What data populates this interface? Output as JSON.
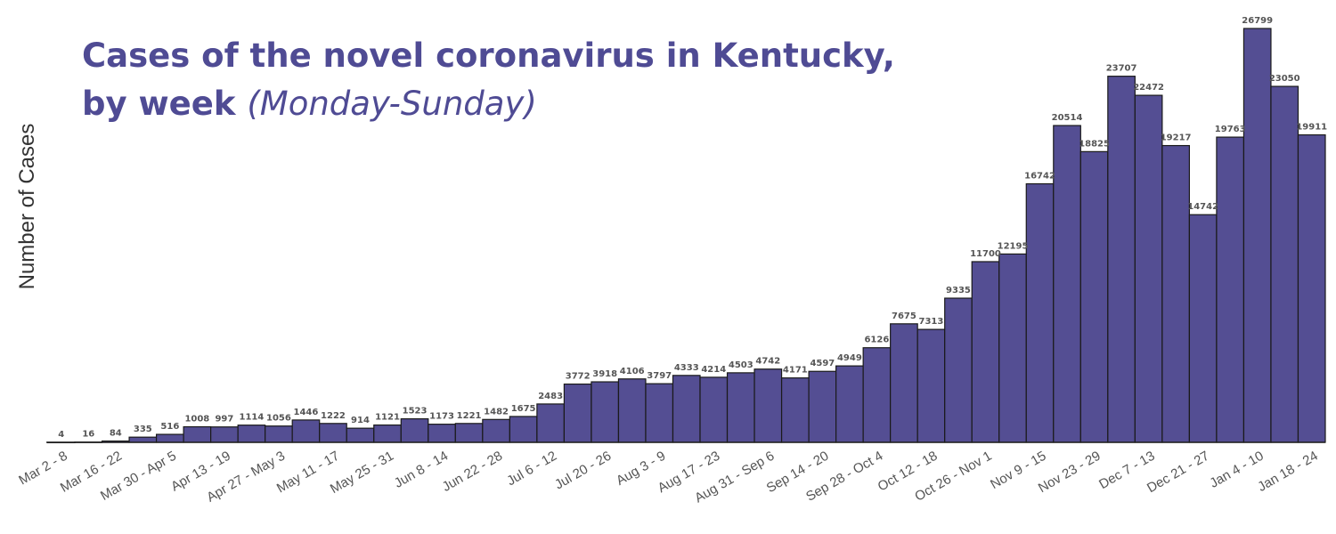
{
  "title": {
    "main": "Cases of the novel coronavirus in Kentucky,",
    "line2_bold": "by week",
    "line2_italic": "(Monday-Sunday)"
  },
  "colors": {
    "bar": "#544e93",
    "title": "#4f4b94"
  },
  "chart_data": {
    "type": "bar",
    "ylabel": "Number of Cases",
    "xlabel": "",
    "ylim": [
      0,
      27500
    ],
    "grid": false,
    "legend": "none",
    "values": [
      4,
      16,
      84,
      335,
      516,
      1008,
      997,
      1114,
      1056,
      1446,
      1222,
      914,
      1121,
      1523,
      1173,
      1221,
      1482,
      1675,
      2483,
      3772,
      3918,
      4106,
      3797,
      4333,
      4214,
      4503,
      4742,
      4171,
      4597,
      4949,
      6126,
      7675,
      7313,
      9335,
      11700,
      12195,
      16742,
      20514,
      18825,
      23707,
      22472,
      19217,
      14742,
      19763,
      26799,
      23050,
      19911
    ],
    "value_labels": [
      "4",
      "16",
      "84",
      "335",
      "516",
      "1008",
      "997",
      "1114",
      "1056",
      "1446",
      "1222",
      "914",
      "1121",
      "1523",
      "1173",
      "1221",
      "1482",
      "1675",
      "2483",
      "3772",
      "3918",
      "4106",
      "3797",
      "4333",
      "4214",
      "4503",
      "4742",
      "4171",
      "4597",
      "4949",
      "6126",
      "7675",
      "7313",
      "9335",
      "11700",
      "12195",
      "16742",
      "20514",
      "18825",
      "23707",
      "22472",
      "19217",
      "14742",
      "19763",
      "26799",
      "23050",
      "19911"
    ],
    "tick_labels": [
      {
        "index": 0,
        "text": "Mar 2 - 8"
      },
      {
        "index": 2,
        "text": "Mar 16 - 22"
      },
      {
        "index": 4,
        "text": "Mar 30 - Apr 5"
      },
      {
        "index": 6,
        "text": "Apr 13 - 19"
      },
      {
        "index": 8,
        "text": "Apr 27 - May 3"
      },
      {
        "index": 10,
        "text": "May 11 - 17"
      },
      {
        "index": 12,
        "text": "May 25 - 31"
      },
      {
        "index": 14,
        "text": "Jun 8 - 14"
      },
      {
        "index": 16,
        "text": "Jun 22 - 28"
      },
      {
        "index": 18,
        "text": "Jul 6 - 12"
      },
      {
        "index": 20,
        "text": "Jul 20 - 26"
      },
      {
        "index": 22,
        "text": "Aug 3 - 9"
      },
      {
        "index": 24,
        "text": "Aug 17 - 23"
      },
      {
        "index": 26,
        "text": "Aug 31 - Sep 6"
      },
      {
        "index": 28,
        "text": "Sep 14 - 20"
      },
      {
        "index": 30,
        "text": "Sep 28 - Oct 4"
      },
      {
        "index": 32,
        "text": "Oct 12 - 18"
      },
      {
        "index": 34,
        "text": "Oct 26 - Nov 1"
      },
      {
        "index": 36,
        "text": "Nov 9 - 15"
      },
      {
        "index": 38,
        "text": "Nov 23 - 29"
      },
      {
        "index": 40,
        "text": "Dec 7 - 13"
      },
      {
        "index": 42,
        "text": "Dec 21 - 27"
      },
      {
        "index": 44,
        "text": "Jan 4 - 10"
      },
      {
        "index": 46,
        "text": "Jan 18 - 24"
      }
    ]
  }
}
